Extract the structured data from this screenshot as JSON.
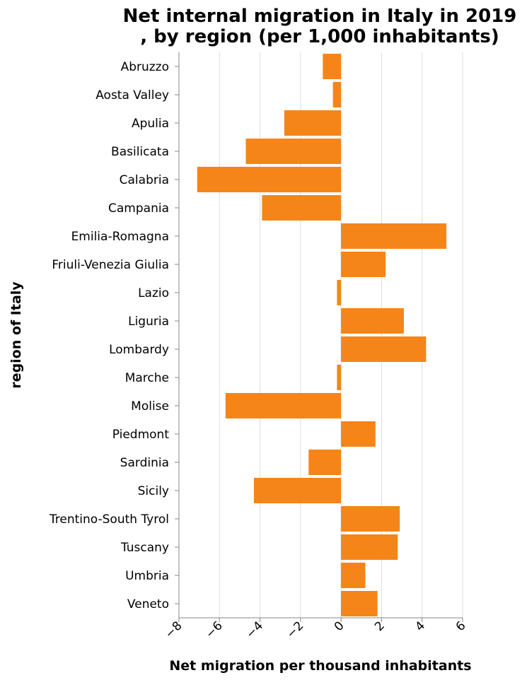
{
  "chart_data": {
    "type": "bar",
    "orientation": "horizontal",
    "title_lines": [
      "Net internal migration in Italy in 2019",
      ", by region (per 1,000 inhabitants)"
    ],
    "xlabel": "Net migration per thousand inhabitants",
    "ylabel": "region of Italy",
    "xlim": [
      -8,
      6
    ],
    "xticks": [
      -8,
      -6,
      -4,
      -2,
      0,
      2,
      4,
      6
    ],
    "grid": true,
    "bar_color": "#f58518",
    "categories": [
      "Abruzzo",
      "Aosta Valley",
      "Apulia",
      "Basilicata",
      "Calabria",
      "Campania",
      "Emilia-Romagna",
      "Friuli-Venezia Giulia",
      "Lazio",
      "Liguria",
      "Lombardy",
      "Marche",
      "Molise",
      "Piedmont",
      "Sardinia",
      "Sicily",
      "Trentino-South Tyrol",
      "Tuscany",
      "Umbria",
      "Veneto"
    ],
    "values": [
      -0.9,
      -0.4,
      -2.8,
      -4.7,
      -7.1,
      -3.9,
      5.2,
      2.2,
      -0.2,
      3.1,
      4.2,
      -0.2,
      -5.7,
      1.7,
      -1.6,
      -4.3,
      2.9,
      2.8,
      1.2,
      1.8
    ]
  }
}
